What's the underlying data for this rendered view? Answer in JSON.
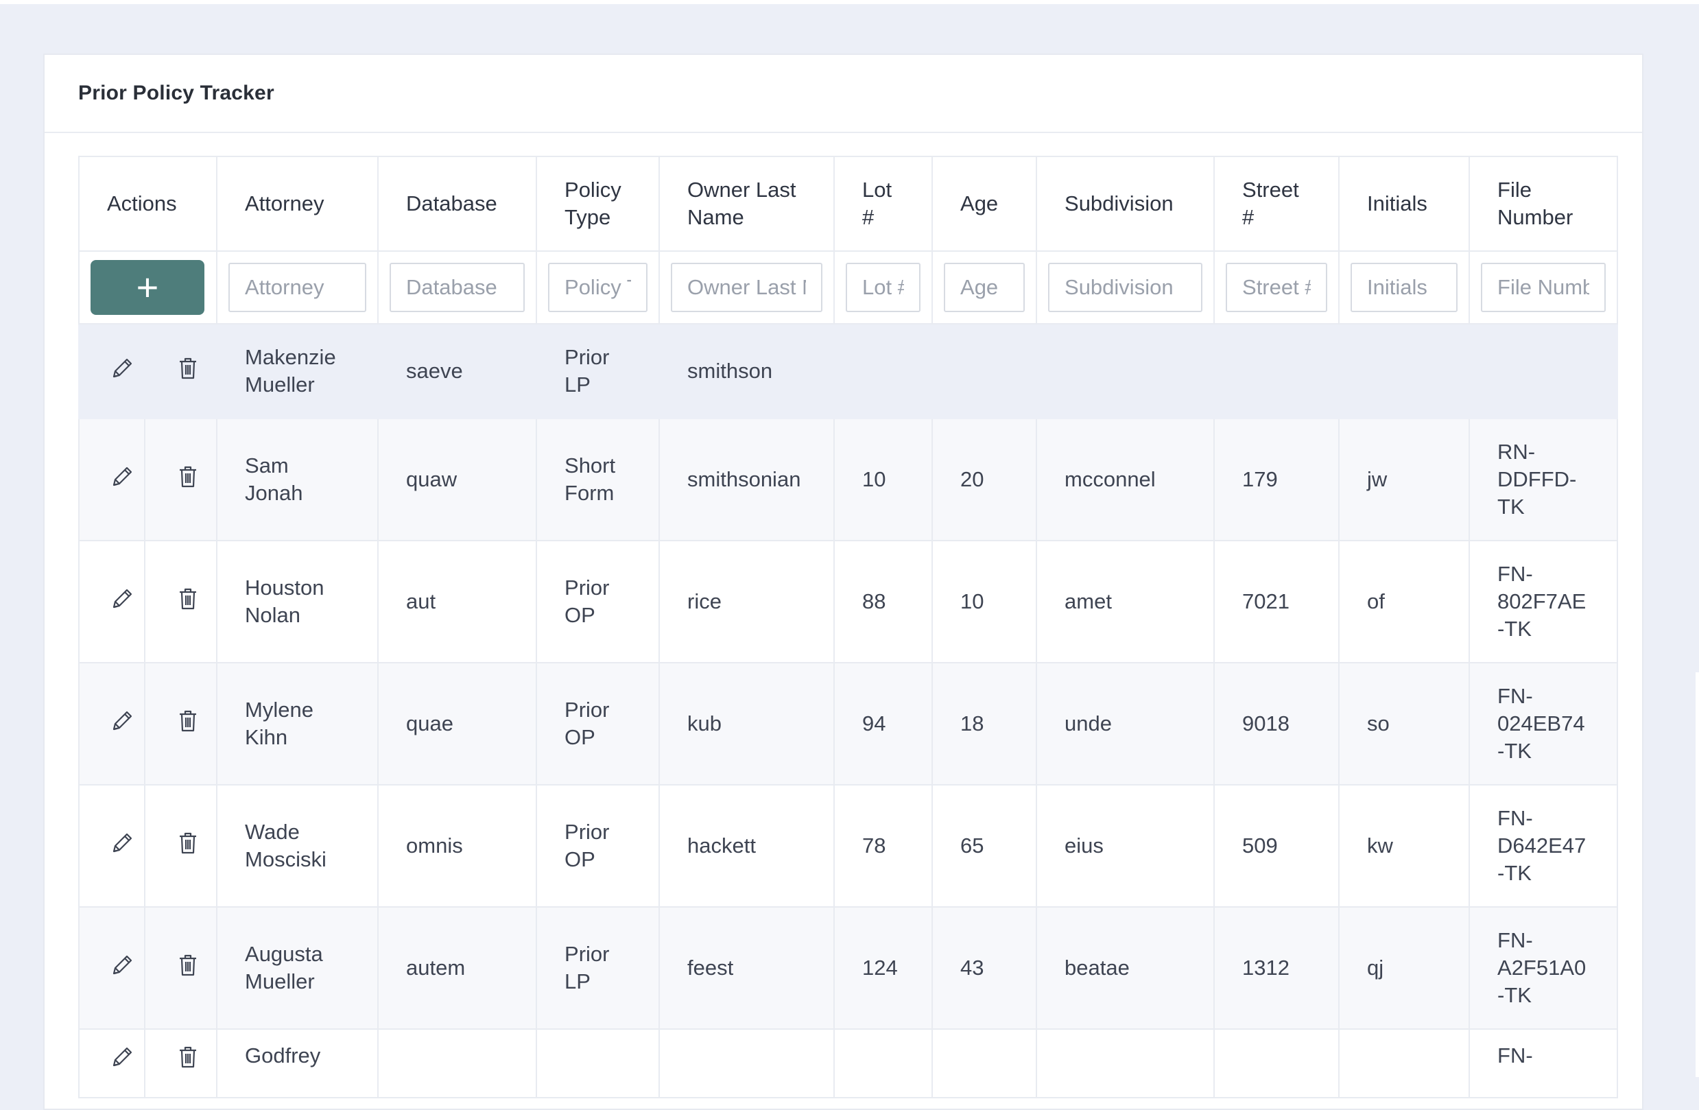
{
  "page": {
    "title": "Prior Policy Tracker"
  },
  "columns": {
    "actions": "Actions",
    "attorney": "Attorney",
    "database": "Database",
    "policy_type": "Policy Type",
    "owner_last_name": "Owner Last Name",
    "lot": "Lot #",
    "age": "Age",
    "subdivision": "Subdivision",
    "street": "Street #",
    "initials": "Initials",
    "file_number": "File Number"
  },
  "filters": {
    "add_label": "+",
    "attorney": "Attorney",
    "database": "Database",
    "policy_type": "Policy Type",
    "owner_last_name": "Owner Last Name",
    "lot": "Lot #",
    "age": "Age",
    "subdivision": "Subdivision",
    "street": "Street #",
    "initials": "Initials",
    "file_number": "File Number"
  },
  "icons": {
    "edit": "pencil-icon",
    "delete": "trash-icon"
  },
  "colors": {
    "accent": "#4e7d7b",
    "background": "#eceff7"
  },
  "rows": [
    {
      "attorney": "Makenzie Mueller",
      "database": "saeve",
      "policy_type": "Prior LP",
      "owner_last_name": "smithson",
      "lot": "",
      "age": "",
      "subdivision": "",
      "street": "",
      "initials": "",
      "file_number": ""
    },
    {
      "attorney": "Sam Jonah",
      "database": "quaw",
      "policy_type": "Short Form",
      "owner_last_name": "smithsonian",
      "lot": "10",
      "age": "20",
      "subdivision": "mcconnel",
      "street": "179",
      "initials": "jw",
      "file_number": "RN-DDFFD-TK"
    },
    {
      "attorney": "Houston Nolan",
      "database": "aut",
      "policy_type": "Prior OP",
      "owner_last_name": "rice",
      "lot": "88",
      "age": "10",
      "subdivision": "amet",
      "street": "7021",
      "initials": "of",
      "file_number": "FN-802F7AE-TK"
    },
    {
      "attorney": "Mylene Kihn",
      "database": "quae",
      "policy_type": "Prior OP",
      "owner_last_name": "kub",
      "lot": "94",
      "age": "18",
      "subdivision": "unde",
      "street": "9018",
      "initials": "so",
      "file_number": "FN-024EB74-TK"
    },
    {
      "attorney": "Wade Mosciski",
      "database": "omnis",
      "policy_type": "Prior OP",
      "owner_last_name": "hackett",
      "lot": "78",
      "age": "65",
      "subdivision": "eius",
      "street": "509",
      "initials": "kw",
      "file_number": "FN-D642E47-TK"
    },
    {
      "attorney": "Augusta Mueller",
      "database": "autem",
      "policy_type": "Prior LP",
      "owner_last_name": "feest",
      "lot": "124",
      "age": "43",
      "subdivision": "beatae",
      "street": "1312",
      "initials": "qj",
      "file_number": "FN-A2F51A0-TK"
    },
    {
      "attorney": "Godfrey",
      "database": "",
      "policy_type": "",
      "owner_last_name": "",
      "lot": "",
      "age": "",
      "subdivision": "",
      "street": "",
      "initials": "",
      "file_number": "FN-"
    }
  ]
}
